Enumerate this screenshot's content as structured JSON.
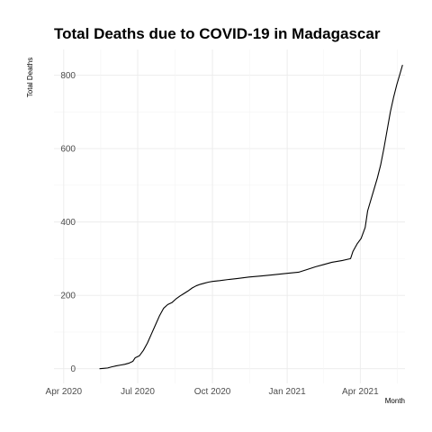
{
  "chart_data": {
    "type": "line",
    "title": "Total Deaths due to COVID-19 in Madagascar",
    "xlabel": "Month",
    "ylabel": "Total Deaths",
    "x_ticks": [
      "Apr 2020",
      "Jul 2020",
      "Oct 2020",
      "Jan 2021",
      "Apr 2021"
    ],
    "y_ticks": [
      0,
      200,
      400,
      600,
      800
    ],
    "xlim": [
      "2020-03-20",
      "2021-05-26"
    ],
    "ylim": [
      -40,
      870
    ],
    "grid": true,
    "series": [
      {
        "name": "Total Deaths",
        "color": "#000000",
        "points": [
          [
            "2020-05-15",
            0
          ],
          [
            "2020-05-20",
            1
          ],
          [
            "2020-05-25",
            2
          ],
          [
            "2020-05-30",
            5
          ],
          [
            "2020-06-05",
            8
          ],
          [
            "2020-06-10",
            10
          ],
          [
            "2020-06-15",
            12
          ],
          [
            "2020-06-20",
            15
          ],
          [
            "2020-06-25",
            20
          ],
          [
            "2020-06-28",
            30
          ],
          [
            "2020-07-03",
            35
          ],
          [
            "2020-07-08",
            50
          ],
          [
            "2020-07-13",
            70
          ],
          [
            "2020-07-18",
            95
          ],
          [
            "2020-07-23",
            120
          ],
          [
            "2020-07-28",
            145
          ],
          [
            "2020-08-02",
            165
          ],
          [
            "2020-08-07",
            175
          ],
          [
            "2020-08-12",
            180
          ],
          [
            "2020-08-17",
            190
          ],
          [
            "2020-08-22",
            198
          ],
          [
            "2020-08-27",
            205
          ],
          [
            "2020-09-01",
            212
          ],
          [
            "2020-09-06",
            220
          ],
          [
            "2020-09-11",
            226
          ],
          [
            "2020-09-16",
            230
          ],
          [
            "2020-09-21",
            233
          ],
          [
            "2020-09-26",
            236
          ],
          [
            "2020-10-01",
            238
          ],
          [
            "2020-10-10",
            240
          ],
          [
            "2020-10-20",
            243
          ],
          [
            "2020-11-01",
            246
          ],
          [
            "2020-11-15",
            250
          ],
          [
            "2020-12-01",
            253
          ],
          [
            "2020-12-15",
            256
          ],
          [
            "2021-01-01",
            260
          ],
          [
            "2021-01-15",
            263
          ],
          [
            "2021-01-25",
            270
          ],
          [
            "2021-02-05",
            278
          ],
          [
            "2021-02-15",
            284
          ],
          [
            "2021-02-25",
            290
          ],
          [
            "2021-03-10",
            295
          ],
          [
            "2021-03-20",
            300
          ],
          [
            "2021-03-23",
            320
          ],
          [
            "2021-03-28",
            340
          ],
          [
            "2021-04-02",
            355
          ],
          [
            "2021-04-07",
            385
          ],
          [
            "2021-04-10",
            430
          ],
          [
            "2021-04-14",
            460
          ],
          [
            "2021-04-18",
            490
          ],
          [
            "2021-04-22",
            520
          ],
          [
            "2021-04-26",
            555
          ],
          [
            "2021-04-30",
            600
          ],
          [
            "2021-05-04",
            650
          ],
          [
            "2021-05-08",
            700
          ],
          [
            "2021-05-12",
            740
          ],
          [
            "2021-05-16",
            775
          ],
          [
            "2021-05-20",
            805
          ],
          [
            "2021-05-23",
            828
          ]
        ]
      }
    ]
  }
}
